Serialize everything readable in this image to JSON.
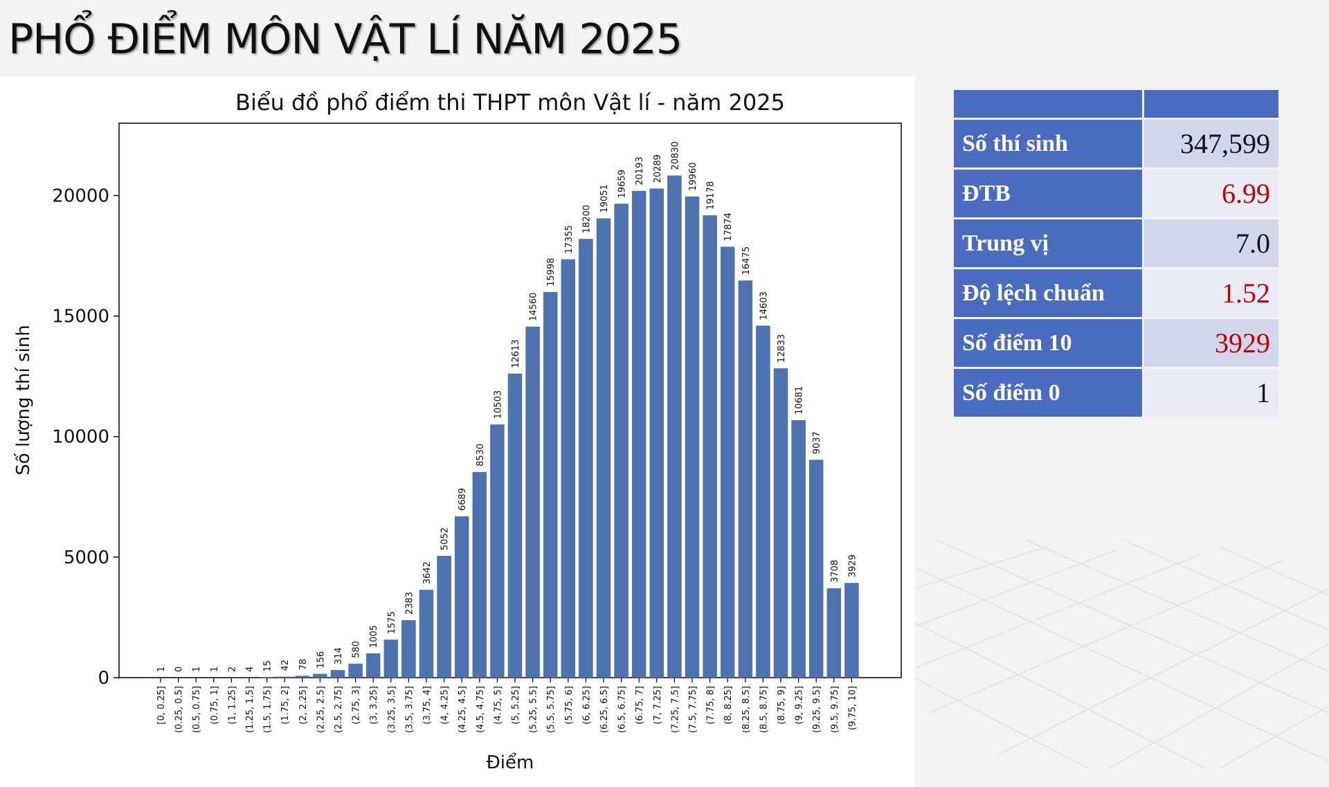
{
  "page": {
    "title": "PHỔ ĐIỂM MÔN VẬT LÍ NĂM 2025"
  },
  "stats": [
    {
      "label": "Số thí sinh",
      "value": "347,599",
      "color": "#111111"
    },
    {
      "label": "ĐTB",
      "value": "6.99",
      "color": "#c00000"
    },
    {
      "label": "Trung vị",
      "value": "7.0",
      "color": "#111111"
    },
    {
      "label": "Độ lệch chuẩn",
      "value": "1.52",
      "color": "#c00000"
    },
    {
      "label": "Số điểm 10",
      "value": "3929",
      "color": "#c00000"
    },
    {
      "label": "Số điểm 0",
      "value": "1",
      "color": "#111111"
    }
  ],
  "chart_data": {
    "type": "bar",
    "title": "Biểu đồ phổ điểm thi THPT môn Vật lí - năm 2025",
    "xlabel": "Điểm",
    "ylabel": "Số lượng thí sinh",
    "ylim": [
      0,
      23000
    ],
    "yticks": [
      0,
      5000,
      10000,
      15000,
      20000
    ],
    "bar_color": "#4c72b0",
    "grid": false,
    "categories": [
      "[0, 0.25]",
      "(0.25, 0.5]",
      "(0.5, 0.75]",
      "(0.75, 1]",
      "(1, 1.25]",
      "(1.25, 1.5]",
      "(1.5, 1.75]",
      "(1.75, 2]",
      "(2, 2.25]",
      "(2.25, 2.5]",
      "(2.5, 2.75]",
      "(2.75, 3]",
      "(3, 3.25]",
      "(3.25, 3.5]",
      "(3.5, 3.75]",
      "(3.75, 4]",
      "(4, 4.25]",
      "(4.25, 4.5]",
      "(4.5, 4.75]",
      "(4.75, 5]",
      "(5, 5.25]",
      "(5.25, 5.5]",
      "(5.5, 5.75]",
      "(5.75, 6]",
      "(6, 6.25]",
      "(6.25, 6.5]",
      "(6.5, 6.75]",
      "(6.75, 7]",
      "(7, 7.25]",
      "(7.25, 7.5]",
      "(7.5, 7.75]",
      "(7.75, 8]",
      "(8, 8.25]",
      "(8.25, 8.5]",
      "(8.5, 8.75]",
      "(8.75, 9]",
      "(9, 9.25]",
      "(9.25, 9.5]",
      "(9.5, 9.75]",
      "(9.75, 10]"
    ],
    "values": [
      1,
      0,
      1,
      1,
      2,
      4,
      15,
      42,
      78,
      156,
      314,
      580,
      1005,
      1575,
      2383,
      3642,
      5052,
      6689,
      8530,
      10503,
      12613,
      14560,
      15998,
      17355,
      18200,
      19051,
      19659,
      20193,
      20289,
      20830,
      19960,
      19178,
      17874,
      16475,
      14603,
      12833,
      10681,
      9037,
      3708,
      3929
    ]
  }
}
